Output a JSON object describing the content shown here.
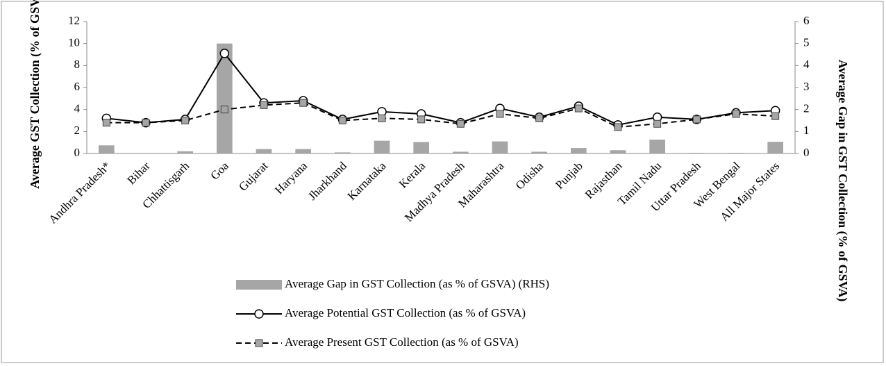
{
  "chart_data": {
    "type": "combo",
    "y_label": "Average GST Collection (% of GSVA)",
    "y2_label": "Average Gap in GST Collection (% of GSVA)",
    "categories": [
      "Andhra Pradesh*",
      "Bihar",
      "Chhattisgarh",
      "Goa",
      "Gujarat",
      "Haryana",
      "Jharkhand",
      "Karnataka",
      "Kerala",
      "Madhya Pradesh",
      "Maharashtra",
      "Odisha",
      "Punjab",
      "Rajasthan",
      "Tamil Nadu",
      "Uttar Pradesh",
      "West Bengal",
      "All Major States"
    ],
    "series": [
      {
        "name": "Average Gap in GST Collection (as % of GSVA) (RHS)",
        "type": "bar",
        "axis": "y2",
        "color": "#a6a6a6",
        "values": [
          0.37,
          0,
          0.1,
          5.0,
          0.2,
          0.2,
          0.05,
          0.58,
          0.52,
          0.08,
          0.55,
          0.08,
          0.25,
          0.15,
          0.63,
          0.03,
          0.03,
          0.53
        ]
      },
      {
        "name": "Average Potential GST Collection (as % of GSVA)",
        "type": "line",
        "color": "#000000",
        "marker": "circle",
        "linestyle": "solid",
        "values": [
          3.2,
          2.8,
          3.1,
          9.1,
          4.6,
          4.8,
          3.1,
          3.8,
          3.6,
          2.8,
          4.1,
          3.3,
          4.3,
          2.6,
          3.3,
          3.1,
          3.7,
          3.9
        ]
      },
      {
        "name": "Average Present GST Collection (as % of GSVA)",
        "type": "line",
        "color": "#000000",
        "marker": "square",
        "linestyle": "dashed",
        "values": [
          2.8,
          2.8,
          3.0,
          4.0,
          4.4,
          4.6,
          3.0,
          3.2,
          3.1,
          2.7,
          3.6,
          3.2,
          4.1,
          2.4,
          2.7,
          3.1,
          3.6,
          3.4
        ]
      }
    ],
    "ylim": [
      0,
      12
    ],
    "yticks": [
      0,
      2,
      4,
      6,
      8,
      10,
      12
    ],
    "y2lim": [
      0,
      6
    ],
    "y2ticks": [
      0,
      1,
      2,
      3,
      4,
      5,
      6
    ]
  }
}
